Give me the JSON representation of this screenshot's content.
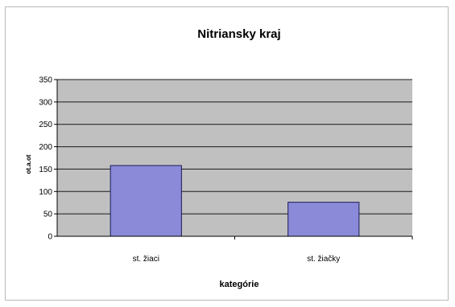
{
  "chart_data": {
    "type": "bar",
    "title": "Nitriansky kraj",
    "xlabel": "kategórie",
    "ylabel": "ot.a.ot",
    "categories": [
      "st. žiaci",
      "st. žiačky"
    ],
    "values": [
      158,
      76
    ],
    "ylim": [
      0,
      350
    ],
    "yticks": [
      "0",
      "50",
      "100",
      "150",
      "200",
      "250",
      "300",
      "350"
    ],
    "grid": true,
    "colors": {
      "plot_area": "#c0c0c0",
      "bar_fill": "#8a8ad8",
      "bar_stroke": "#1a1a5a",
      "gridline": "#1a1a1a"
    }
  }
}
